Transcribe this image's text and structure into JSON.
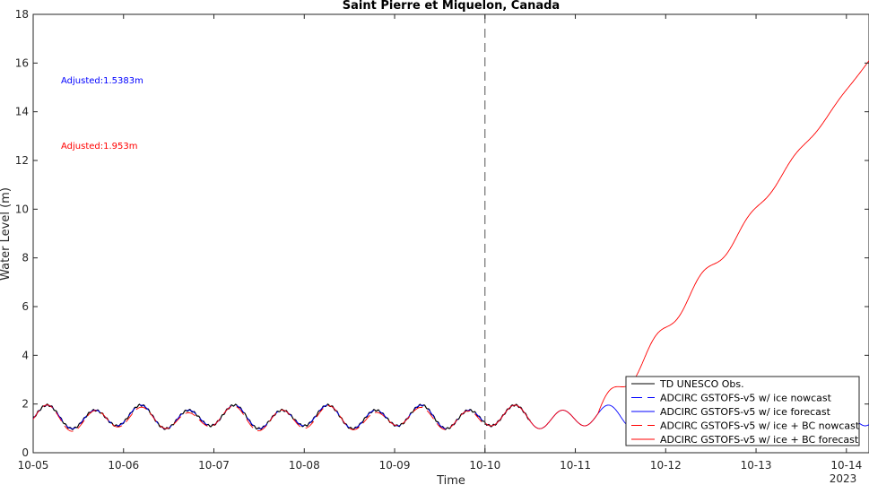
{
  "chart_data": {
    "type": "line",
    "title": "Saint Pierre et Miquelon, Canada",
    "xlabel": "Time",
    "ylabel": "Water Level (m)",
    "xlim": [
      "2023-10-05T00:00",
      "2023-10-14T06:00"
    ],
    "ylim": [
      0,
      18
    ],
    "yticks": [
      0,
      2,
      4,
      6,
      8,
      10,
      12,
      14,
      16,
      18
    ],
    "xticks": [
      "10-05",
      "10-06",
      "10-07",
      "10-08",
      "10-09",
      "10-10",
      "10-11",
      "10-12",
      "10-13",
      "10-14"
    ],
    "xtick_year": "2023",
    "nowcast_forecast_divider": "2023-10-10T00:00",
    "annotations": [
      {
        "text": "Adjusted:1.5383m",
        "color": "#0000ff"
      },
      {
        "text": "Adjusted:1.953m",
        "color": "#ff0000"
      }
    ],
    "series": [
      {
        "name": "TD UNESCO Obs.",
        "color": "#000000",
        "dash": "solid",
        "x_range": [
          "2023-10-05T00:00",
          "2023-10-10T12:00"
        ]
      },
      {
        "name": "ADCIRC GSTOFS-v5 w/ ice nowcast",
        "color": "#0000ff",
        "dash": "dashed",
        "x_range": [
          "2023-10-05T00:00",
          "2023-10-10T00:00"
        ]
      },
      {
        "name": "ADCIRC GSTOFS-v5 w/ ice forecast",
        "color": "#0000ff",
        "dash": "solid",
        "x_range": [
          "2023-10-10T00:00",
          "2023-10-14T06:00"
        ]
      },
      {
        "name": "ADCIRC GSTOFS-v5 w/ ice + BC nowcast",
        "color": "#ff0000",
        "dash": "dashed",
        "x_range": [
          "2023-10-05T00:00",
          "2023-10-10T00:00"
        ]
      },
      {
        "name": "ADCIRC GSTOFS-v5 w/ ice + BC forecast",
        "color": "#ff0000",
        "dash": "solid",
        "x_range": [
          "2023-10-10T00:00",
          "2023-10-14T06:00"
        ],
        "end_value": 16.1
      }
    ],
    "tide": {
      "mean": 1.45,
      "amplitude": 0.4,
      "period_hours": 12.42
    },
    "grid": false,
    "legend_position": "bottom-right"
  }
}
